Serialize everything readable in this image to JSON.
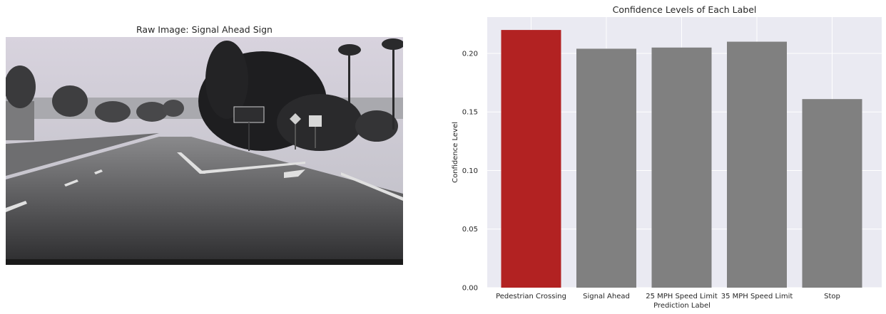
{
  "left_panel": {
    "title": "Raw Image: Signal Ahead Sign"
  },
  "colors": {
    "highlight": "#b22222",
    "bar": "#808080",
    "plot_bg": "#eaeaf2",
    "grid": "#ffffff"
  },
  "chart_data": {
    "type": "bar",
    "title": "Confidence Levels of Each Label",
    "xlabel": "Prediction Label",
    "ylabel": "Confidence Level",
    "categories": [
      "Pedestrian Crossing",
      "Signal Ahead",
      "25 MPH Speed Limit",
      "35 MPH Speed Limit",
      "Stop"
    ],
    "values": [
      0.22,
      0.204,
      0.205,
      0.21,
      0.161
    ],
    "highlight_index": 0,
    "ylim": [
      0,
      0.231
    ],
    "yticks": [
      "0.00",
      "0.05",
      "0.10",
      "0.15",
      "0.20"
    ],
    "grid": true,
    "legend": "none"
  }
}
